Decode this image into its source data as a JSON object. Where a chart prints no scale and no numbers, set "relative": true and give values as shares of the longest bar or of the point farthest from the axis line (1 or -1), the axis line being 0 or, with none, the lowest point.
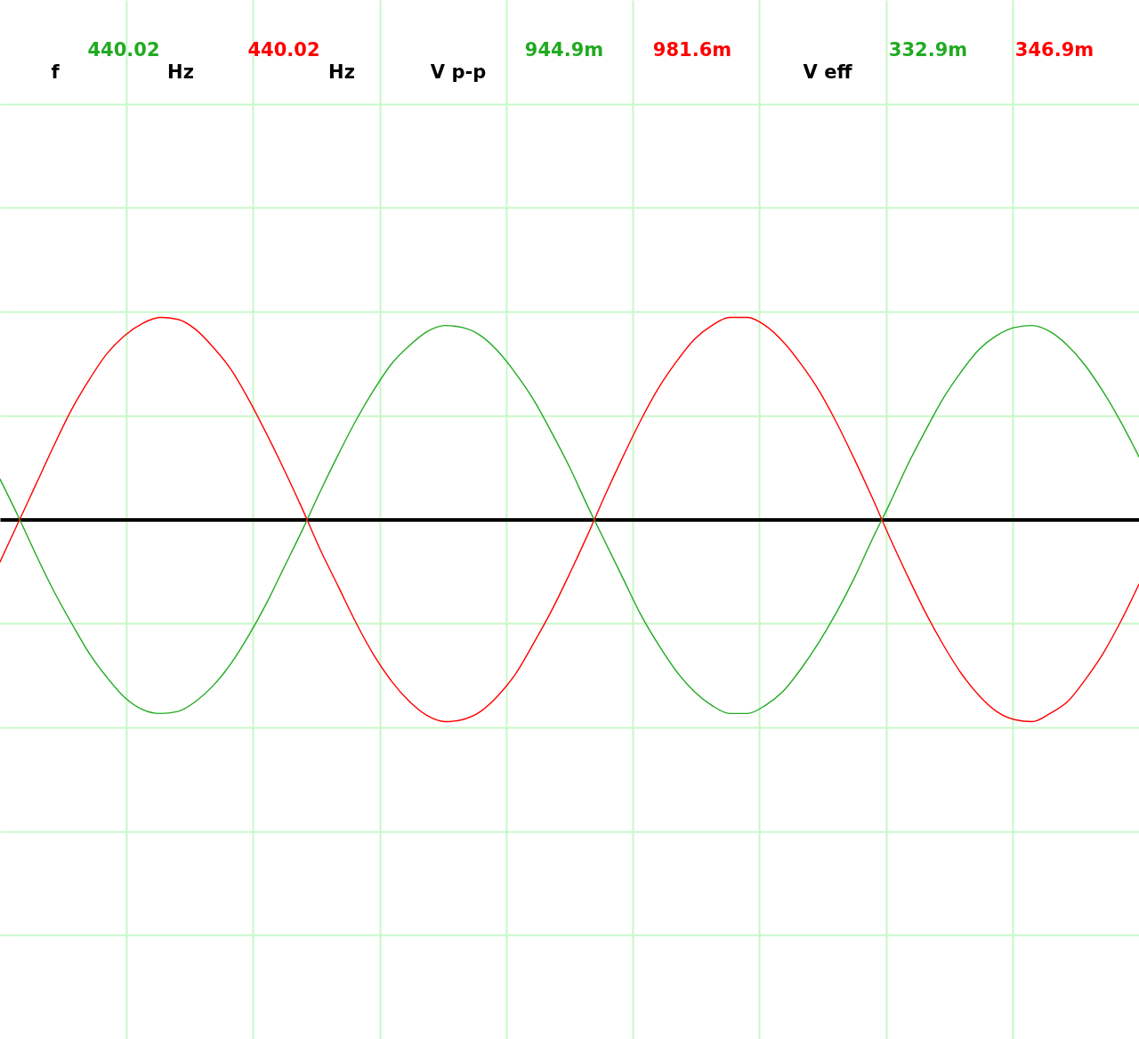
{
  "chart_data": {
    "type": "line",
    "relative": true,
    "grid": true,
    "categories": [
      null,
      null,
      null,
      null,
      null,
      null,
      null,
      null,
      null,
      null,
      null,
      null,
      null,
      null,
      null,
      null,
      null,
      null,
      null,
      null,
      null,
      null,
      null,
      null,
      null,
      null,
      null,
      null,
      null,
      null,
      null,
      null,
      null,
      null,
      null,
      null,
      null,
      null,
      null,
      null,
      null,
      null,
      null,
      null,
      null,
      null,
      null,
      null,
      null,
      null,
      null,
      null,
      null,
      null,
      null,
      null,
      null,
      null,
      null,
      null,
      null,
      null,
      null,
      null,
      null
    ],
    "series": [
      {
        "color": "#22aa22",
        "values": [
          0.2,
          0.02,
          -0.17,
          -0.35,
          -0.51,
          -0.66,
          -0.78,
          -0.88,
          -0.94,
          -0.96,
          -0.95,
          -0.9,
          -0.82,
          -0.71,
          -0.57,
          -0.41,
          -0.23,
          -0.05,
          0.14,
          0.32,
          0.49,
          0.64,
          0.77,
          0.86,
          0.93,
          0.96,
          0.95,
          0.91,
          0.83,
          0.72,
          0.59,
          0.43,
          0.26,
          0.07,
          -0.11,
          -0.29,
          -0.47,
          -0.62,
          -0.75,
          -0.85,
          -0.92,
          -0.96,
          -0.96,
          -0.92,
          -0.85,
          -0.74,
          -0.61,
          -0.46,
          -0.29,
          -0.1,
          0.08,
          0.27,
          0.44,
          0.6,
          0.73,
          0.84,
          0.91,
          0.95,
          0.96,
          0.93,
          0.86,
          0.76,
          0.63,
          0.48,
          0.31
        ]
      },
      {
        "color": "#ff0000",
        "values": [
          -0.21,
          -0.02,
          0.17,
          0.36,
          0.54,
          0.69,
          0.82,
          0.91,
          0.97,
          1.0,
          0.99,
          0.94,
          0.85,
          0.74,
          0.59,
          0.42,
          0.24,
          0.05,
          -0.15,
          -0.33,
          -0.51,
          -0.67,
          -0.8,
          -0.9,
          -0.97,
          -1.0,
          -0.99,
          -0.95,
          -0.87,
          -0.76,
          -0.61,
          -0.45,
          -0.27,
          -0.08,
          0.12,
          0.31,
          0.49,
          0.65,
          0.78,
          0.89,
          0.96,
          1.0,
          1.0,
          0.96,
          0.88,
          0.77,
          0.64,
          0.48,
          0.3,
          0.11,
          -0.09,
          -0.28,
          -0.46,
          -0.62,
          -0.76,
          -0.87,
          -0.95,
          -0.99,
          -1.0,
          -0.96,
          -0.9,
          -0.79,
          -0.66,
          -0.5,
          -0.32
        ]
      }
    ],
    "annotations": [
      "f",
      "440.02",
      "Hz",
      "440.02",
      "Hz",
      "V p-p",
      "944.9m",
      "981.6m",
      "V eff",
      "332.9m",
      "346.9m"
    ]
  }
}
